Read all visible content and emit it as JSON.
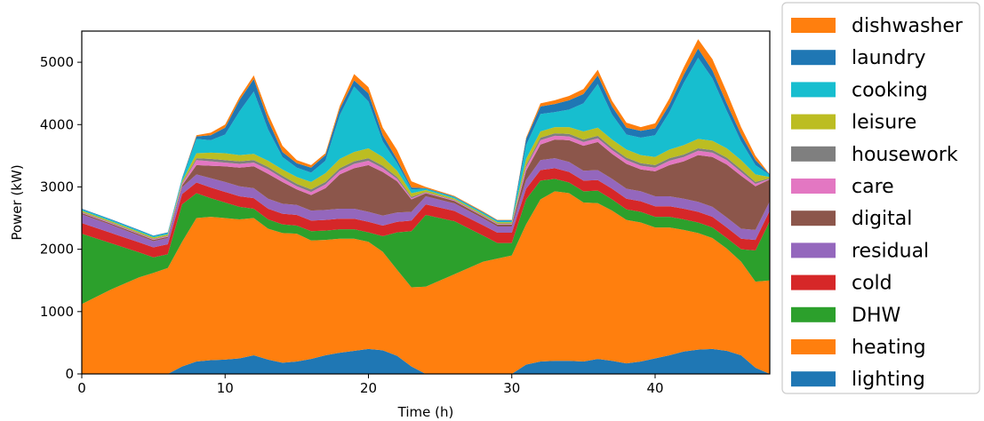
{
  "chart_data": {
    "type": "area",
    "stacked": true,
    "xlabel": "Time (h)",
    "ylabel": "Power (kW)",
    "xlim": [
      0,
      48
    ],
    "ylim": [
      0,
      5500
    ],
    "xticks": [
      0,
      10,
      20,
      30,
      40
    ],
    "yticks": [
      0,
      1000,
      2000,
      3000,
      4000,
      5000
    ],
    "grid": false,
    "legend_position": "right",
    "x": [
      0,
      2,
      4,
      5,
      6,
      7,
      8,
      9,
      10,
      11,
      12,
      13,
      14,
      15,
      16,
      17,
      18,
      19,
      20,
      21,
      22,
      23,
      24,
      26,
      28,
      29,
      30,
      31,
      32,
      33,
      34,
      35,
      36,
      37,
      38,
      39,
      40,
      41,
      42,
      43,
      44,
      45,
      46,
      47,
      48
    ],
    "series": [
      {
        "name": "lighting",
        "color": "#1f77b4",
        "values": [
          0,
          0,
          0,
          0,
          0,
          120,
          200,
          220,
          230,
          250,
          300,
          230,
          180,
          200,
          240,
          300,
          340,
          370,
          400,
          380,
          290,
          120,
          0,
          0,
          0,
          0,
          0,
          150,
          200,
          210,
          210,
          200,
          240,
          210,
          170,
          200,
          250,
          300,
          360,
          390,
          400,
          370,
          300,
          100,
          0
        ]
      },
      {
        "name": "heating",
        "color": "#ff7f0e",
        "values": [
          1120,
          1350,
          1550,
          1620,
          1700,
          2000,
          2300,
          2300,
          2270,
          2230,
          2200,
          2100,
          2080,
          2050,
          1900,
          1850,
          1830,
          1800,
          1720,
          1580,
          1380,
          1270,
          1400,
          1600,
          1800,
          1850,
          1900,
          2250,
          2600,
          2720,
          2690,
          2550,
          2500,
          2410,
          2300,
          2230,
          2100,
          2050,
          1950,
          1870,
          1780,
          1640,
          1500,
          1380,
          1500
        ]
      },
      {
        "name": "DHW",
        "color": "#2ca02c",
        "values": [
          1130,
          750,
          400,
          250,
          220,
          600,
          400,
          300,
          250,
          200,
          150,
          150,
          140,
          130,
          150,
          150,
          150,
          150,
          150,
          250,
          600,
          900,
          1150,
          850,
          420,
          250,
          200,
          400,
          300,
          200,
          170,
          180,
          200,
          180,
          170,
          170,
          170,
          170,
          170,
          170,
          170,
          170,
          200,
          500,
          950
        ]
      },
      {
        "name": "cold",
        "color": "#d62728",
        "values": [
          170,
          165,
          160,
          160,
          160,
          165,
          170,
          170,
          170,
          170,
          170,
          170,
          170,
          170,
          170,
          170,
          170,
          170,
          170,
          170,
          170,
          170,
          170,
          165,
          165,
          165,
          165,
          170,
          170,
          170,
          170,
          170,
          170,
          170,
          170,
          170,
          170,
          170,
          170,
          170,
          170,
          170,
          170,
          170,
          170
        ]
      },
      {
        "name": "residual",
        "color": "#9467bd",
        "values": [
          140,
          130,
          110,
          100,
          100,
          110,
          130,
          150,
          160,
          160,
          160,
          160,
          160,
          160,
          160,
          160,
          160,
          160,
          160,
          160,
          150,
          140,
          130,
          120,
          110,
          100,
          100,
          140,
          160,
          160,
          160,
          160,
          160,
          160,
          160,
          160,
          160,
          160,
          160,
          160,
          160,
          160,
          160,
          160,
          150
        ]
      },
      {
        "name": "digital",
        "color": "#8c564b",
        "values": [
          20,
          20,
          20,
          20,
          20,
          30,
          150,
          200,
          250,
          300,
          350,
          400,
          350,
          250,
          250,
          350,
          550,
          650,
          750,
          700,
          500,
          200,
          50,
          40,
          30,
          30,
          30,
          150,
          250,
          300,
          350,
          400,
          450,
          400,
          400,
          350,
          400,
          500,
          600,
          750,
          800,
          850,
          850,
          700,
          350
        ]
      },
      {
        "name": "care",
        "color": "#e377c2",
        "values": [
          10,
          10,
          10,
          10,
          10,
          20,
          80,
          70,
          60,
          60,
          60,
          70,
          60,
          50,
          50,
          60,
          60,
          70,
          70,
          60,
          40,
          20,
          10,
          10,
          10,
          10,
          10,
          60,
          70,
          60,
          60,
          60,
          60,
          60,
          60,
          60,
          60,
          70,
          70,
          70,
          70,
          70,
          60,
          40,
          10
        ]
      },
      {
        "name": "housework",
        "color": "#7f7f7f",
        "values": [
          10,
          10,
          10,
          10,
          10,
          15,
          30,
          40,
          40,
          40,
          40,
          40,
          40,
          40,
          40,
          40,
          40,
          40,
          40,
          40,
          30,
          20,
          10,
          10,
          10,
          10,
          10,
          30,
          40,
          40,
          40,
          40,
          40,
          40,
          40,
          40,
          40,
          40,
          40,
          40,
          40,
          40,
          40,
          30,
          10
        ]
      },
      {
        "name": "leisure",
        "color": "#bcbd22",
        "values": [
          20,
          20,
          20,
          20,
          20,
          30,
          80,
          100,
          110,
          100,
          100,
          100,
          100,
          110,
          120,
          140,
          150,
          150,
          160,
          140,
          100,
          60,
          30,
          20,
          20,
          20,
          20,
          100,
          100,
          100,
          110,
          130,
          130,
          130,
          130,
          130,
          130,
          140,
          150,
          150,
          150,
          150,
          150,
          120,
          20
        ]
      },
      {
        "name": "cooking",
        "color": "#17becf",
        "values": [
          20,
          20,
          20,
          20,
          20,
          40,
          230,
          200,
          300,
          700,
          1000,
          500,
          200,
          150,
          150,
          200,
          700,
          1050,
          750,
          250,
          120,
          60,
          20,
          20,
          20,
          20,
          20,
          220,
          280,
          240,
          280,
          450,
          700,
          400,
          240,
          280,
          350,
          600,
          1000,
          1300,
          1000,
          600,
          300,
          150,
          30
        ]
      },
      {
        "name": "laundry",
        "color": "#1f77b4",
        "values": [
          10,
          10,
          10,
          10,
          10,
          15,
          40,
          80,
          110,
          180,
          200,
          150,
          80,
          70,
          80,
          90,
          100,
          100,
          130,
          100,
          60,
          30,
          10,
          10,
          10,
          10,
          10,
          100,
          120,
          130,
          150,
          150,
          140,
          130,
          110,
          110,
          110,
          120,
          130,
          150,
          130,
          120,
          110,
          80,
          10
        ]
      },
      {
        "name": "dishwasher",
        "color": "#ff7f0e",
        "values": [
          0,
          0,
          0,
          0,
          0,
          0,
          20,
          40,
          50,
          50,
          60,
          100,
          100,
          50,
          40,
          30,
          50,
          100,
          100,
          120,
          150,
          100,
          20,
          10,
          10,
          5,
          5,
          20,
          50,
          60,
          70,
          80,
          90,
          90,
          80,
          60,
          80,
          100,
          120,
          150,
          180,
          180,
          120,
          70,
          0
        ]
      }
    ],
    "legend_order": [
      "dishwasher",
      "laundry",
      "cooking",
      "leisure",
      "housework",
      "care",
      "digital",
      "residual",
      "cold",
      "DHW",
      "heating",
      "lighting"
    ]
  }
}
